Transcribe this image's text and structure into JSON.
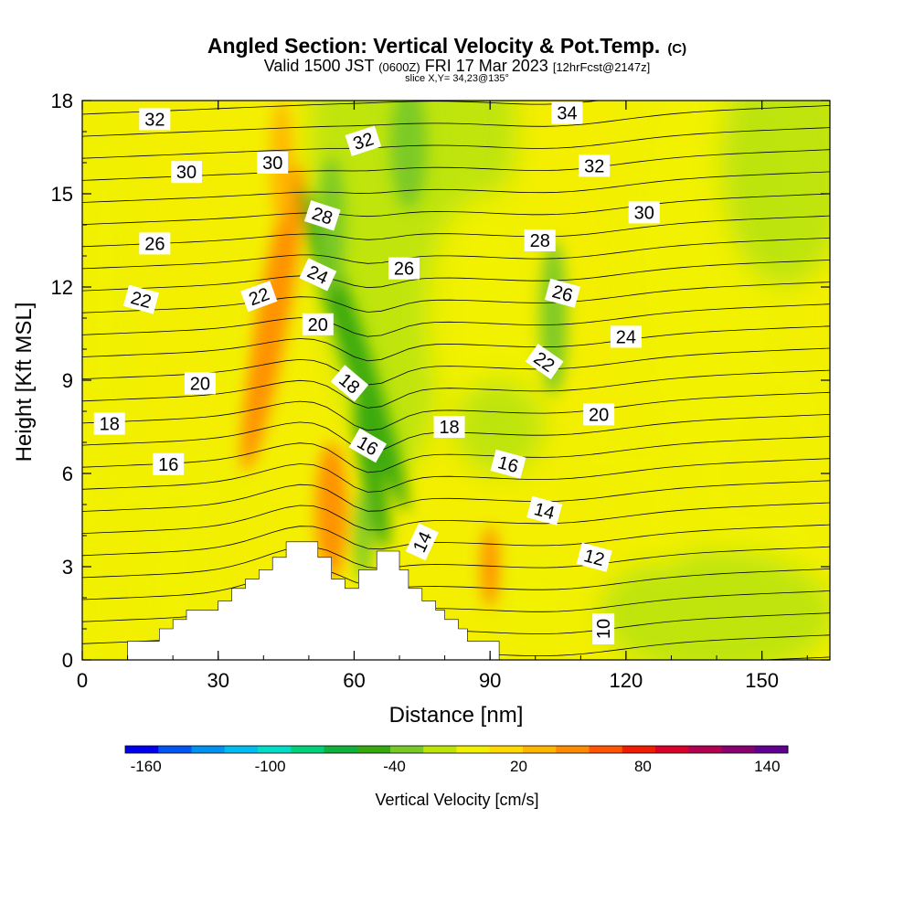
{
  "chart_data": {
    "type": "heatmap",
    "title": "Angled Section: Vertical Velocity & Pot.Temp.",
    "title_mark": "(C)",
    "subtitle_parts": [
      "Valid 1500 JST",
      "(0600Z)",
      "FRI 17 Mar 2023",
      "[12hrFcst@2147z]"
    ],
    "slice_note": "slice X,Y= 34,23@135°",
    "xlabel": "Distance [nm]",
    "ylabel": "Height [Kft MSL]",
    "xlim": [
      0,
      165
    ],
    "ylim": [
      0,
      18
    ],
    "x_ticks": [
      0,
      30,
      60,
      90,
      120,
      150
    ],
    "y_ticks": [
      0,
      3,
      6,
      9,
      12,
      15,
      18
    ],
    "colorbar": {
      "label": "Vertical Velocity [cm/s]",
      "range": [
        -170,
        150
      ],
      "tick_values": [
        -160,
        -100,
        -40,
        20,
        80,
        140
      ],
      "colors": [
        "#0000ee",
        "#0055ee",
        "#0090ee",
        "#00bbee",
        "#00dcc8",
        "#00cf7c",
        "#10b03c",
        "#36a810",
        "#78c828",
        "#bce408",
        "#f0f000",
        "#ffd800",
        "#ffb400",
        "#ff8c00",
        "#ff5400",
        "#f01c00",
        "#d8002a",
        "#b00050",
        "#880070",
        "#600090"
      ]
    },
    "vertical_velocity_features": [
      {
        "label": "downdraft",
        "x": 60,
        "y": 10,
        "value": -60
      },
      {
        "label": "downdraft",
        "x": 70,
        "y": 16,
        "value": -30
      },
      {
        "label": "downdraft",
        "x": 104,
        "y": 11,
        "value": -40
      },
      {
        "label": "updraft",
        "x": 42,
        "y": 11,
        "value": 45
      },
      {
        "label": "updraft",
        "x": 55,
        "y": 4.5,
        "value": 45
      },
      {
        "label": "updraft",
        "x": 90,
        "y": 3,
        "value": 40
      }
    ],
    "theta_contours": [
      10,
      12,
      14,
      16,
      18,
      20,
      22,
      24,
      26,
      28,
      30,
      32,
      34
    ],
    "contour_labels": [
      {
        "text": "32",
        "x": 16,
        "y": 17.4,
        "angle": 0
      },
      {
        "text": "30",
        "x": 23,
        "y": 15.7,
        "angle": 0
      },
      {
        "text": "30",
        "x": 42,
        "y": 16.0,
        "angle": 0
      },
      {
        "text": "32",
        "x": 62,
        "y": 16.7,
        "angle": -18
      },
      {
        "text": "34",
        "x": 107,
        "y": 17.6,
        "angle": 0
      },
      {
        "text": "32",
        "x": 113,
        "y": 15.9,
        "angle": 0
      },
      {
        "text": "30",
        "x": 124,
        "y": 14.4,
        "angle": 0
      },
      {
        "text": "28",
        "x": 53,
        "y": 14.3,
        "angle": 18
      },
      {
        "text": "26",
        "x": 16,
        "y": 13.4,
        "angle": 0
      },
      {
        "text": "28",
        "x": 101,
        "y": 13.5,
        "angle": 0
      },
      {
        "text": "26",
        "x": 71,
        "y": 12.6,
        "angle": 0
      },
      {
        "text": "24",
        "x": 52,
        "y": 12.4,
        "angle": 25
      },
      {
        "text": "26",
        "x": 106,
        "y": 11.8,
        "angle": 15
      },
      {
        "text": "22",
        "x": 13,
        "y": 11.6,
        "angle": 15
      },
      {
        "text": "22",
        "x": 39,
        "y": 11.7,
        "angle": -20
      },
      {
        "text": "20",
        "x": 52,
        "y": 10.8,
        "angle": 0
      },
      {
        "text": "24",
        "x": 120,
        "y": 10.4,
        "angle": 0
      },
      {
        "text": "22",
        "x": 102,
        "y": 9.6,
        "angle": 35
      },
      {
        "text": "20",
        "x": 26,
        "y": 8.9,
        "angle": 0
      },
      {
        "text": "18",
        "x": 59,
        "y": 8.9,
        "angle": 40
      },
      {
        "text": "18",
        "x": 6,
        "y": 7.6,
        "angle": 0
      },
      {
        "text": "18",
        "x": 81,
        "y": 7.5,
        "angle": 0
      },
      {
        "text": "20",
        "x": 114,
        "y": 7.9,
        "angle": 0
      },
      {
        "text": "16",
        "x": 63,
        "y": 6.9,
        "angle": 30
      },
      {
        "text": "16",
        "x": 19,
        "y": 6.3,
        "angle": 0
      },
      {
        "text": "16",
        "x": 94,
        "y": 6.3,
        "angle": 15
      },
      {
        "text": "14",
        "x": 102,
        "y": 4.8,
        "angle": 15
      },
      {
        "text": "14",
        "x": 75,
        "y": 3.8,
        "angle": -65
      },
      {
        "text": "12",
        "x": 113,
        "y": 3.3,
        "angle": 15
      },
      {
        "text": "10",
        "x": 115,
        "y": 1.0,
        "angle": -90
      }
    ],
    "terrain": [
      [
        0,
        0
      ],
      [
        10,
        0
      ],
      [
        10,
        0.6
      ],
      [
        17,
        0.6
      ],
      [
        17,
        1.0
      ],
      [
        20,
        1.0
      ],
      [
        20,
        1.3
      ],
      [
        23,
        1.3
      ],
      [
        23,
        1.6
      ],
      [
        30,
        1.6
      ],
      [
        30,
        1.9
      ],
      [
        33,
        1.9
      ],
      [
        33,
        2.3
      ],
      [
        36,
        2.3
      ],
      [
        36,
        2.6
      ],
      [
        39,
        2.6
      ],
      [
        39,
        2.9
      ],
      [
        42,
        2.9
      ],
      [
        42,
        3.3
      ],
      [
        45,
        3.3
      ],
      [
        45,
        3.8
      ],
      [
        52,
        3.8
      ],
      [
        52,
        3.3
      ],
      [
        55,
        3.3
      ],
      [
        55,
        2.6
      ],
      [
        58,
        2.6
      ],
      [
        58,
        2.3
      ],
      [
        61,
        2.3
      ],
      [
        61,
        2.9
      ],
      [
        65,
        2.9
      ],
      [
        65,
        3.5
      ],
      [
        70,
        3.5
      ],
      [
        70,
        2.9
      ],
      [
        72,
        2.9
      ],
      [
        72,
        2.3
      ],
      [
        75,
        2.3
      ],
      [
        75,
        1.9
      ],
      [
        78,
        1.9
      ],
      [
        78,
        1.6
      ],
      [
        80,
        1.6
      ],
      [
        80,
        1.3
      ],
      [
        83,
        1.3
      ],
      [
        83,
        1.0
      ],
      [
        85,
        1.0
      ],
      [
        85,
        0.6
      ],
      [
        92,
        0.6
      ],
      [
        92,
        0
      ],
      [
        165,
        0
      ]
    ]
  }
}
